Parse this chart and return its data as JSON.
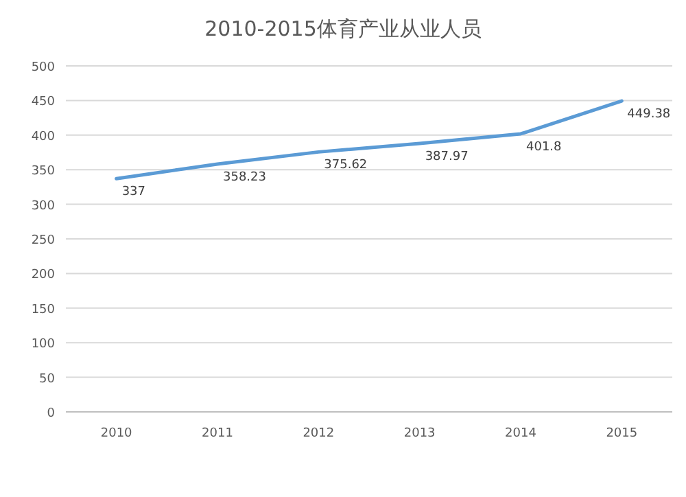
{
  "chart_data": {
    "type": "line",
    "title": "2010-2015体育产业从业人员",
    "categories": [
      "2010",
      "2011",
      "2012",
      "2013",
      "2014",
      "2015"
    ],
    "series": [
      {
        "color": "#5b9bd5",
        "values": [
          337,
          358.23,
          375.62,
          387.97,
          401.8,
          449.38
        ]
      }
    ],
    "ylim": [
      0,
      500
    ],
    "yticks": [
      0,
      50,
      100,
      150,
      200,
      250,
      300,
      350,
      400,
      450,
      500
    ],
    "grid": "y",
    "data_labels": true
  }
}
